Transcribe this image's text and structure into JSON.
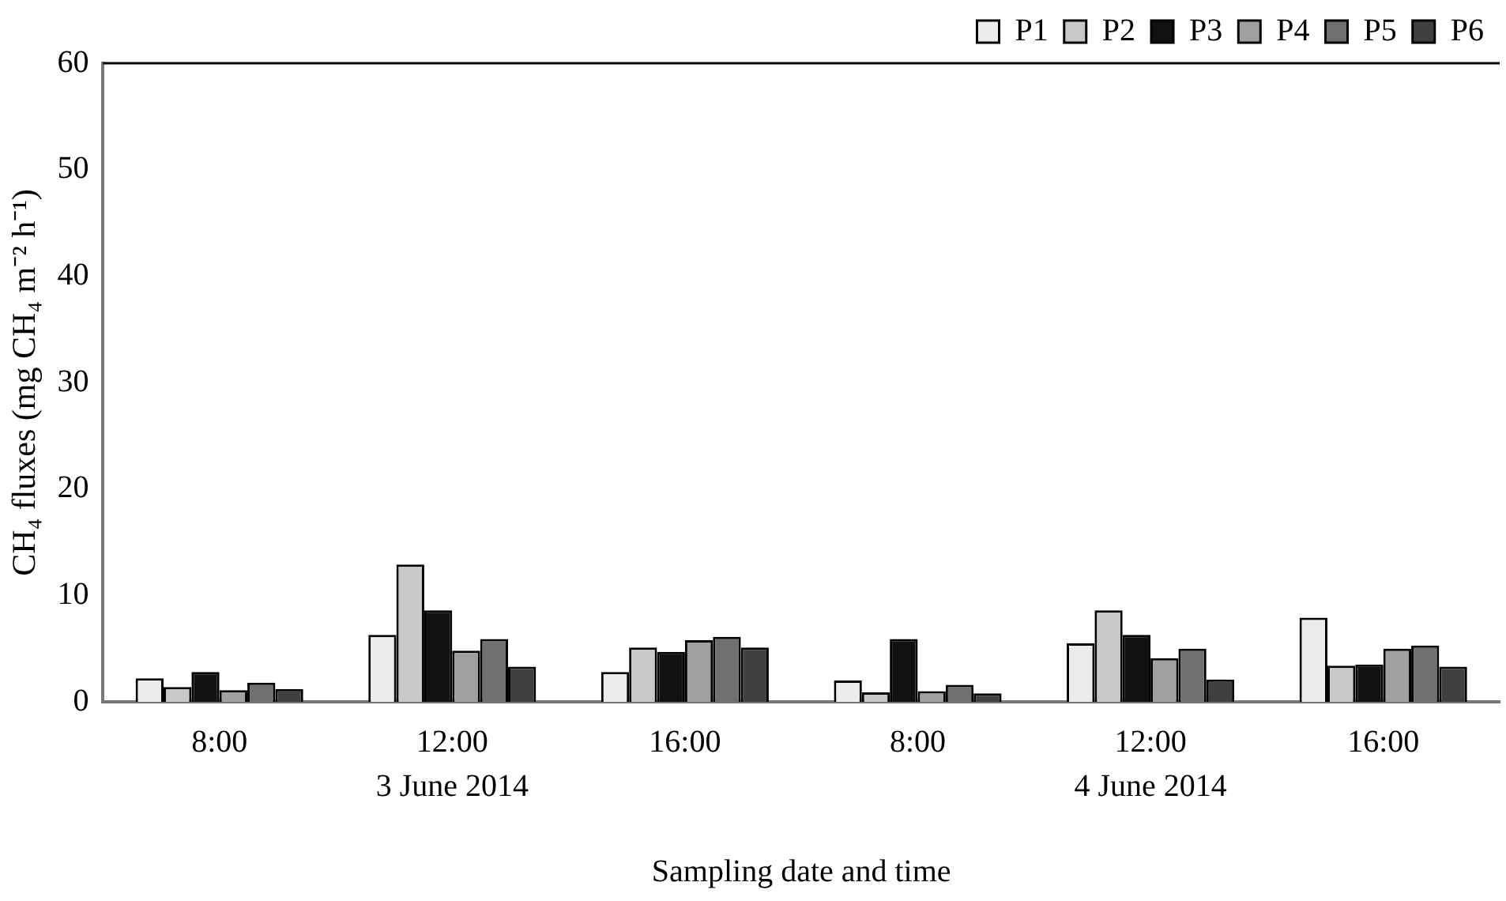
{
  "chart_data": {
    "type": "bar",
    "xlabel": "Sampling date and time",
    "ylabel": "CH₄ fluxes (mg CH₄ m⁻² h⁻¹)",
    "categories": [
      "8:00",
      "12:00",
      "16:00",
      "8:00",
      "12:00",
      "16:00"
    ],
    "series": [
      {
        "name": "P1",
        "color": "#ececec",
        "values": [
          2.2,
          6.3,
          2.8,
          2.0,
          5.5,
          7.9
        ]
      },
      {
        "name": "P2",
        "color": "#c8c8c8",
        "values": [
          1.4,
          12.9,
          5.1,
          0.9,
          8.6,
          3.4
        ]
      },
      {
        "name": "P3",
        "color": "#111111",
        "values": [
          2.8,
          8.6,
          4.7,
          5.9,
          6.3,
          3.5
        ]
      },
      {
        "name": "P4",
        "color": "#a0a0a0",
        "values": [
          1.1,
          4.8,
          5.8,
          1.0,
          4.1,
          5.0
        ]
      },
      {
        "name": "P5",
        "color": "#707070",
        "values": [
          1.8,
          5.9,
          6.1,
          1.6,
          5.0,
          5.3
        ]
      },
      {
        "name": "P6",
        "color": "#404040",
        "values": [
          1.2,
          3.3,
          5.1,
          0.8,
          2.1,
          3.3
        ]
      }
    ],
    "annotations": [
      "3 June 2014",
      "4 June 2014"
    ],
    "ylim": [
      0,
      60
    ],
    "yticks": [
      0,
      10,
      20,
      30,
      40,
      50,
      60
    ],
    "grid": false,
    "legend": "top right"
  }
}
